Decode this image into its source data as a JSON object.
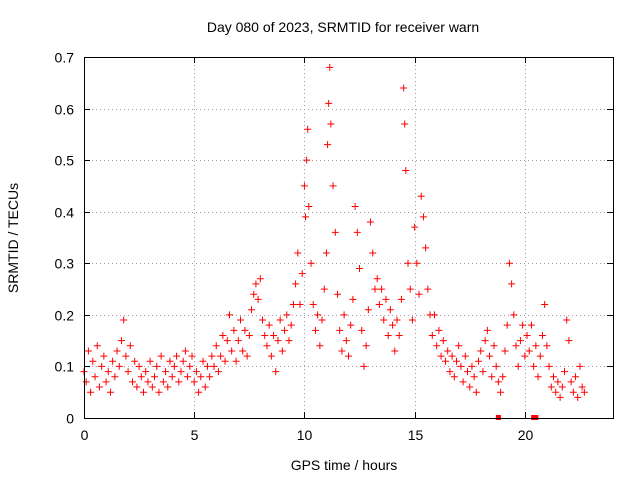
{
  "chart_data": {
    "type": "scatter",
    "title": "Day 080 of 2023, SRMTID for receiver warn",
    "xlabel": "GPS time / hours",
    "ylabel": "SRMTID / TECUs",
    "xlim": [
      0,
      24
    ],
    "ylim": [
      0,
      0.7
    ],
    "xticks": [
      0,
      5,
      10,
      15,
      20
    ],
    "xtick_labels": [
      "0",
      "5",
      "10",
      "15",
      "20"
    ],
    "yticks": [
      0,
      0.1,
      0.2,
      0.3,
      0.4,
      0.5,
      0.6,
      0.7
    ],
    "ytick_labels": [
      "0",
      "0.1",
      "0.2",
      "0.3",
      "0.4",
      "0.5",
      "0.6",
      "0.7"
    ],
    "grid": true,
    "marker": "+",
    "color": "#ff0000",
    "series": [
      {
        "name": "SRMTID",
        "points": [
          [
            0.0,
            0.09
          ],
          [
            0.1,
            0.07
          ],
          [
            0.2,
            0.13
          ],
          [
            0.3,
            0.05
          ],
          [
            0.4,
            0.11
          ],
          [
            0.5,
            0.08
          ],
          [
            0.6,
            0.14
          ],
          [
            0.7,
            0.06
          ],
          [
            0.8,
            0.1
          ],
          [
            0.9,
            0.12
          ],
          [
            1.0,
            0.07
          ],
          [
            1.1,
            0.09
          ],
          [
            1.2,
            0.05
          ],
          [
            1.3,
            0.11
          ],
          [
            1.4,
            0.08
          ],
          [
            1.5,
            0.13
          ],
          [
            1.6,
            0.1
          ],
          [
            1.7,
            0.15
          ],
          [
            1.8,
            0.19
          ],
          [
            1.9,
            0.12
          ],
          [
            2.0,
            0.09
          ],
          [
            2.1,
            0.14
          ],
          [
            2.2,
            0.07
          ],
          [
            2.3,
            0.11
          ],
          [
            2.4,
            0.06
          ],
          [
            2.5,
            0.1
          ],
          [
            2.6,
            0.08
          ],
          [
            2.7,
            0.05
          ],
          [
            2.8,
            0.09
          ],
          [
            2.9,
            0.07
          ],
          [
            3.0,
            0.11
          ],
          [
            3.1,
            0.06
          ],
          [
            3.2,
            0.08
          ],
          [
            3.3,
            0.1
          ],
          [
            3.4,
            0.05
          ],
          [
            3.5,
            0.12
          ],
          [
            3.6,
            0.07
          ],
          [
            3.7,
            0.09
          ],
          [
            3.8,
            0.06
          ],
          [
            3.9,
            0.11
          ],
          [
            4.0,
            0.08
          ],
          [
            4.1,
            0.1
          ],
          [
            4.2,
            0.12
          ],
          [
            4.3,
            0.07
          ],
          [
            4.4,
            0.09
          ],
          [
            4.5,
            0.11
          ],
          [
            4.6,
            0.13
          ],
          [
            4.7,
            0.08
          ],
          [
            4.8,
            0.1
          ],
          [
            4.9,
            0.12
          ],
          [
            5.0,
            0.07
          ],
          [
            5.1,
            0.09
          ],
          [
            5.2,
            0.05
          ],
          [
            5.3,
            0.08
          ],
          [
            5.4,
            0.11
          ],
          [
            5.5,
            0.06
          ],
          [
            5.6,
            0.1
          ],
          [
            5.7,
            0.08
          ],
          [
            5.8,
            0.12
          ],
          [
            5.9,
            0.1
          ],
          [
            6.0,
            0.14
          ],
          [
            6.1,
            0.09
          ],
          [
            6.2,
            0.12
          ],
          [
            6.3,
            0.16
          ],
          [
            6.4,
            0.11
          ],
          [
            6.5,
            0.15
          ],
          [
            6.6,
            0.2
          ],
          [
            6.7,
            0.13
          ],
          [
            6.8,
            0.17
          ],
          [
            6.9,
            0.11
          ],
          [
            7.0,
            0.15
          ],
          [
            7.1,
            0.19
          ],
          [
            7.2,
            0.13
          ],
          [
            7.3,
            0.17
          ],
          [
            7.4,
            0.12
          ],
          [
            7.5,
            0.16
          ],
          [
            7.6,
            0.21
          ],
          [
            7.7,
            0.24
          ],
          [
            7.8,
            0.26
          ],
          [
            7.9,
            0.23
          ],
          [
            8.0,
            0.27
          ],
          [
            8.1,
            0.19
          ],
          [
            8.2,
            0.16
          ],
          [
            8.3,
            0.14
          ],
          [
            8.4,
            0.18
          ],
          [
            8.5,
            0.12
          ],
          [
            8.6,
            0.16
          ],
          [
            8.7,
            0.09
          ],
          [
            8.8,
            0.15
          ],
          [
            8.9,
            0.19
          ],
          [
            9.0,
            0.13
          ],
          [
            9.1,
            0.17
          ],
          [
            9.2,
            0.2
          ],
          [
            9.3,
            0.15
          ],
          [
            9.4,
            0.18
          ],
          [
            9.5,
            0.22
          ],
          [
            9.6,
            0.26
          ],
          [
            9.7,
            0.32
          ],
          [
            9.8,
            0.22
          ],
          [
            9.9,
            0.28
          ],
          [
            10.0,
            0.45
          ],
          [
            10.05,
            0.39
          ],
          [
            10.1,
            0.5
          ],
          [
            10.15,
            0.56
          ],
          [
            10.2,
            0.41
          ],
          [
            10.3,
            0.3
          ],
          [
            10.4,
            0.22
          ],
          [
            10.5,
            0.17
          ],
          [
            10.6,
            0.2
          ],
          [
            10.7,
            0.14
          ],
          [
            10.8,
            0.19
          ],
          [
            10.9,
            0.25
          ],
          [
            11.0,
            0.32
          ],
          [
            11.05,
            0.53
          ],
          [
            11.1,
            0.61
          ],
          [
            11.15,
            0.68
          ],
          [
            11.2,
            0.57
          ],
          [
            11.3,
            0.45
          ],
          [
            11.4,
            0.36
          ],
          [
            11.5,
            0.24
          ],
          [
            11.6,
            0.17
          ],
          [
            11.7,
            0.13
          ],
          [
            11.8,
            0.2
          ],
          [
            11.9,
            0.15
          ],
          [
            12.0,
            0.12
          ],
          [
            12.1,
            0.18
          ],
          [
            12.2,
            0.23
          ],
          [
            12.3,
            0.41
          ],
          [
            12.4,
            0.36
          ],
          [
            12.5,
            0.29
          ],
          [
            12.6,
            0.17
          ],
          [
            12.7,
            0.1
          ],
          [
            12.8,
            0.14
          ],
          [
            12.9,
            0.21
          ],
          [
            13.0,
            0.38
          ],
          [
            13.1,
            0.32
          ],
          [
            13.2,
            0.25
          ],
          [
            13.3,
            0.27
          ],
          [
            13.4,
            0.22
          ],
          [
            13.5,
            0.25
          ],
          [
            13.6,
            0.19
          ],
          [
            13.7,
            0.23
          ],
          [
            13.8,
            0.16
          ],
          [
            13.9,
            0.21
          ],
          [
            14.0,
            0.18
          ],
          [
            14.1,
            0.13
          ],
          [
            14.2,
            0.19
          ],
          [
            14.3,
            0.16
          ],
          [
            14.4,
            0.23
          ],
          [
            14.5,
            0.64
          ],
          [
            14.55,
            0.57
          ],
          [
            14.6,
            0.48
          ],
          [
            14.7,
            0.3
          ],
          [
            14.8,
            0.25
          ],
          [
            14.9,
            0.19
          ],
          [
            15.0,
            0.37
          ],
          [
            15.1,
            0.3
          ],
          [
            15.2,
            0.24
          ],
          [
            15.3,
            0.43
          ],
          [
            15.4,
            0.39
          ],
          [
            15.5,
            0.33
          ],
          [
            15.6,
            0.25
          ],
          [
            15.7,
            0.2
          ],
          [
            15.8,
            0.16
          ],
          [
            15.9,
            0.2
          ],
          [
            16.0,
            0.14
          ],
          [
            16.1,
            0.17
          ],
          [
            16.2,
            0.12
          ],
          [
            16.3,
            0.15
          ],
          [
            16.4,
            0.11
          ],
          [
            16.5,
            0.13
          ],
          [
            16.6,
            0.09
          ],
          [
            16.7,
            0.12
          ],
          [
            16.8,
            0.08
          ],
          [
            16.9,
            0.11
          ],
          [
            17.0,
            0.14
          ],
          [
            17.1,
            0.1
          ],
          [
            17.2,
            0.07
          ],
          [
            17.3,
            0.12
          ],
          [
            17.4,
            0.09
          ],
          [
            17.5,
            0.06
          ],
          [
            17.6,
            0.1
          ],
          [
            17.7,
            0.08
          ],
          [
            17.8,
            0.05
          ],
          [
            17.9,
            0.11
          ],
          [
            18.0,
            0.13
          ],
          [
            18.1,
            0.09
          ],
          [
            18.2,
            0.15
          ],
          [
            18.3,
            0.17
          ],
          [
            18.4,
            0.12
          ],
          [
            18.5,
            0.08
          ],
          [
            18.6,
            0.14
          ],
          [
            18.7,
            0.1
          ],
          [
            18.8,
            0.07
          ],
          [
            18.9,
            0.05
          ],
          [
            19.0,
            0.08
          ],
          [
            19.1,
            0.13
          ],
          [
            19.2,
            0.18
          ],
          [
            19.3,
            0.3
          ],
          [
            19.4,
            0.26
          ],
          [
            19.5,
            0.2
          ],
          [
            19.6,
            0.14
          ],
          [
            19.7,
            0.1
          ],
          [
            19.8,
            0.15
          ],
          [
            19.9,
            0.18
          ],
          [
            20.0,
            0.12
          ],
          [
            20.1,
            0.16
          ],
          [
            20.2,
            0.13
          ],
          [
            20.3,
            0.18
          ],
          [
            20.4,
            0.1
          ],
          [
            20.5,
            0.14
          ],
          [
            20.6,
            0.08
          ],
          [
            20.7,
            0.12
          ],
          [
            20.8,
            0.16
          ],
          [
            20.9,
            0.22
          ],
          [
            21.0,
            0.14
          ],
          [
            21.1,
            0.1
          ],
          [
            21.2,
            0.06
          ],
          [
            21.3,
            0.08
          ],
          [
            21.4,
            0.05
          ],
          [
            21.5,
            0.07
          ],
          [
            21.6,
            0.04
          ],
          [
            21.7,
            0.06
          ],
          [
            21.8,
            0.09
          ],
          [
            21.9,
            0.19
          ],
          [
            22.0,
            0.15
          ],
          [
            22.1,
            0.07
          ],
          [
            22.2,
            0.05
          ],
          [
            22.3,
            0.08
          ],
          [
            22.4,
            0.04
          ],
          [
            22.5,
            0.1
          ],
          [
            22.6,
            0.06
          ],
          [
            22.7,
            0.05
          ]
        ]
      }
    ],
    "zero_markers": [
      18.8,
      20.4,
      20.5
    ]
  }
}
